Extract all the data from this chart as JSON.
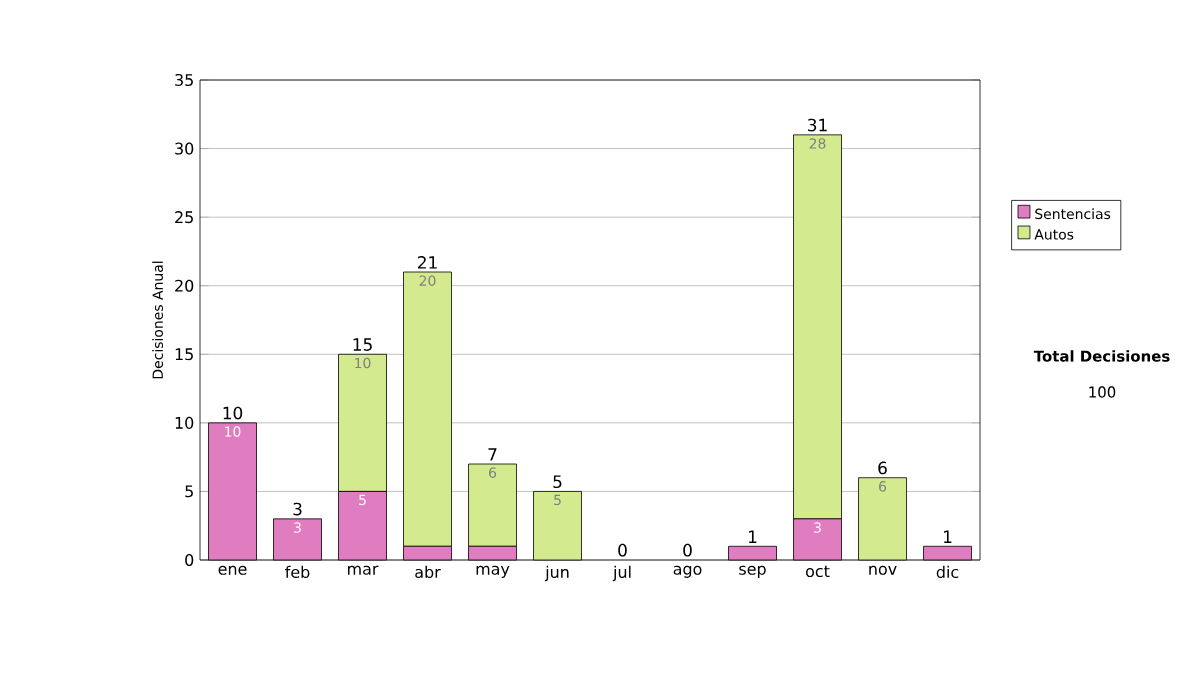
{
  "chart_data": {
    "type": "bar",
    "stacked": true,
    "ylabel": "Decisiones Anual",
    "categories": [
      "ene",
      "feb",
      "mar",
      "abr",
      "may",
      "jun",
      "jul",
      "ago",
      "sep",
      "oct",
      "nov",
      "dic"
    ],
    "series": [
      {
        "name": "Sentencias",
        "color": "#e07cc0",
        "values": [
          10,
          3,
          5,
          1,
          1,
          0,
          0,
          0,
          1,
          3,
          0,
          1
        ],
        "value_labels": [
          "10",
          "3",
          "5",
          null,
          null,
          null,
          null,
          null,
          null,
          "3",
          null,
          null
        ]
      },
      {
        "name": "Autos",
        "color": "#d3ea8f",
        "values": [
          0,
          0,
          10,
          20,
          6,
          5,
          0,
          0,
          0,
          28,
          6,
          0
        ],
        "value_labels": [
          null,
          null,
          "10",
          "20",
          "6",
          "5",
          null,
          null,
          null,
          "28",
          "6",
          null
        ]
      }
    ],
    "totals": [
      "10",
      "3",
      "15",
      "21",
      "7",
      "5",
      "0",
      "0",
      "1",
      "31",
      "6",
      "1"
    ],
    "ylim": [
      0,
      35
    ],
    "yticks": [
      0,
      5,
      10,
      15,
      20,
      25,
      30,
      35
    ],
    "grid": "y",
    "legend": "right",
    "annotations": [
      "Total Decisiones",
      "100"
    ]
  }
}
